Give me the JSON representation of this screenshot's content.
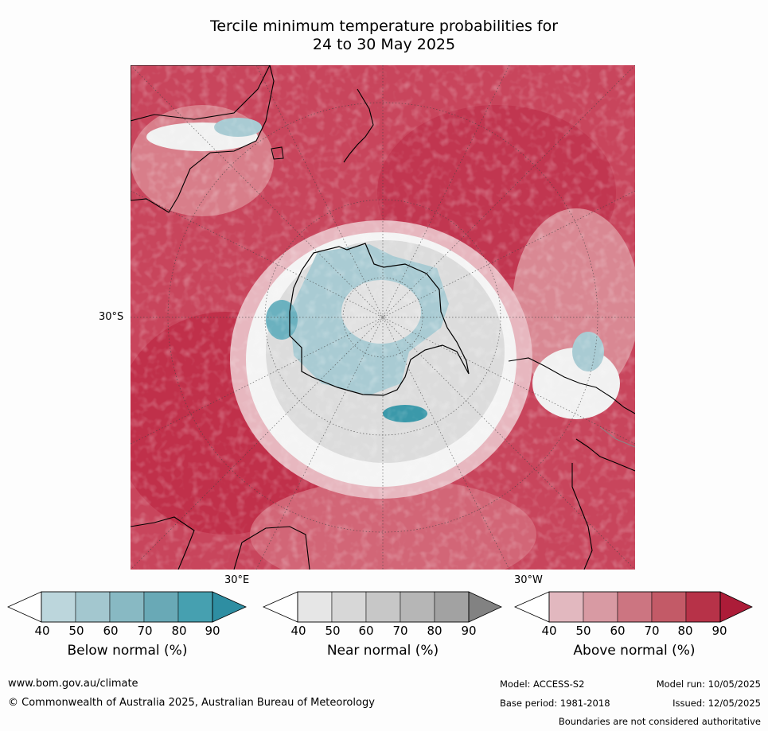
{
  "title": {
    "line1": "Tercile minimum temperature probabilities for",
    "line2": "24 to 30 May 2025"
  },
  "map": {
    "lat_label": "30°S",
    "lon_label_east": "30°E",
    "lon_label_west": "30°W",
    "colors": {
      "land_outline": "#000000",
      "deep_red": "#c0304a",
      "mid_red": "#d26677",
      "light_red": "#e2a6ae",
      "white": "#ffffff",
      "light_grey": "#dcdcdc",
      "light_blue": "#a9cbd3",
      "mid_blue": "#6bb1bf",
      "teal": "#3b99aa"
    }
  },
  "colorbars": [
    {
      "title": "Below normal (%)",
      "ticks": [
        "40",
        "50",
        "60",
        "70",
        "80",
        "90"
      ],
      "colors": [
        "#ffffff",
        "#bcd6dc",
        "#a3c7cf",
        "#88b9c3",
        "#69a9b6",
        "#46a0b0",
        "#2e8ea2"
      ]
    },
    {
      "title": "Near normal (%)",
      "ticks": [
        "40",
        "50",
        "60",
        "70",
        "80",
        "90"
      ],
      "colors": [
        "#ffffff",
        "#e6e6e6",
        "#d7d7d7",
        "#c7c7c7",
        "#b6b6b6",
        "#a2a2a2",
        "#828282"
      ]
    },
    {
      "title": "Above normal (%)",
      "ticks": [
        "40",
        "50",
        "60",
        "70",
        "80",
        "90"
      ],
      "colors": [
        "#ffffff",
        "#e2b8bf",
        "#d89aa3",
        "#cc7581",
        "#c35a67",
        "#b73248",
        "#ac1c38"
      ]
    }
  ],
  "footer": {
    "website": "www.bom.gov.au/climate",
    "copyright": "© Commonwealth of Australia 2025, Australian Bureau of Meteorology",
    "model": "Model: ACCESS-S2",
    "base_period": "Base period: 1981-2018",
    "model_run": "Model run: 10/05/2025",
    "issued": "Issued: 12/05/2025",
    "disclaimer": "Boundaries are not considered authoritative"
  }
}
